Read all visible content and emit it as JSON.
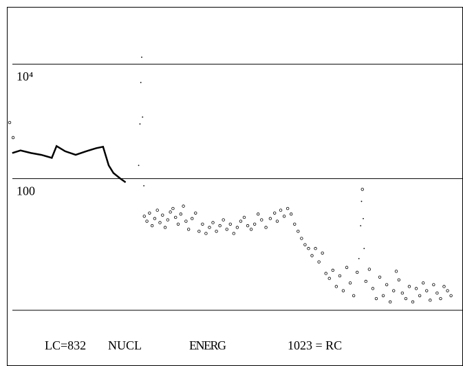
{
  "chart_data": {
    "type": "scatter",
    "log": true,
    "grid": true,
    "xlim": [
      0,
      1023
    ],
    "ylim": [
      0.5,
      100000
    ],
    "yticks": [
      {
        "value": 10000,
        "label": "10⁴"
      },
      100
    ],
    "labels": [
      "LC=832",
      "NUCL",
      "ENERG",
      "1023 = RC"
    ],
    "series": [
      {
        "style": "line",
        "color": "#000",
        "x": [
          6,
          25,
          49,
          73,
          97,
          108,
          128,
          152,
          176,
          199,
          215,
          228,
          239,
          255,
          267
        ],
        "values": [
          280,
          310,
          280,
          260,
          230,
          370,
          300,
          260,
          300,
          340,
          360,
          170,
          125,
          100,
          86
        ]
      },
      {
        "style": "dots",
        "color": "#000",
        "x": [
          297,
          300,
          302,
          304,
          306,
          309,
          804,
          808,
          810,
          814,
          816
        ],
        "values": [
          170,
          900,
          4770,
          13200,
          1190,
          75,
          4,
          15,
          40,
          20,
          6
        ]
      },
      {
        "style": "circles",
        "color": "#000",
        "x": [
          0,
          8,
          310,
          316,
          322,
          328,
          334,
          340,
          346,
          352,
          358,
          364,
          370,
          376,
          382,
          388,
          394,
          400,
          406,
          412,
          420,
          428,
          436,
          444,
          452,
          460,
          468,
          476,
          484,
          492,
          500,
          508,
          516,
          524,
          532,
          540,
          548,
          556,
          564,
          572,
          580,
          590,
          600,
          610,
          616,
          624,
          632,
          640,
          648,
          656,
          664,
          672,
          680,
          688,
          696,
          704,
          712,
          720,
          728,
          736,
          744,
          752,
          760,
          768,
          776,
          784,
          792,
          800,
          812,
          820,
          828,
          836,
          844,
          852,
          860,
          868,
          876,
          884,
          890,
          896,
          904,
          912,
          920,
          928,
          936,
          944,
          952,
          960,
          968,
          976,
          984,
          992,
          1000,
          1008,
          1016
        ],
        "values": [
          955,
          520,
          22,
          18,
          25,
          15,
          20,
          28,
          17,
          23,
          14,
          19,
          26,
          30,
          21,
          16,
          24,
          33,
          18,
          13,
          20,
          25,
          12,
          16,
          11,
          14,
          17,
          12,
          15,
          19,
          13,
          16,
          11,
          14,
          18,
          21,
          15,
          13,
          16,
          24,
          19,
          14,
          20,
          25,
          18,
          28,
          22,
          30,
          24,
          16,
          12,
          9,
          7,
          6,
          4.5,
          6,
          3.5,
          5,
          2.2,
          1.8,
          2.5,
          1.3,
          2,
          1.1,
          2.8,
          1.5,
          0.9,
          2.3,
          65,
          1.6,
          2.6,
          1.2,
          0.8,
          1.9,
          0.9,
          1.4,
          0.7,
          1.1,
          2.4,
          1.7,
          1.0,
          0.8,
          1.3,
          0.7,
          1.2,
          0.9,
          1.5,
          1.1,
          0.75,
          1.4,
          1.0,
          0.8,
          1.3,
          1.1,
          0.9
        ]
      }
    ]
  }
}
